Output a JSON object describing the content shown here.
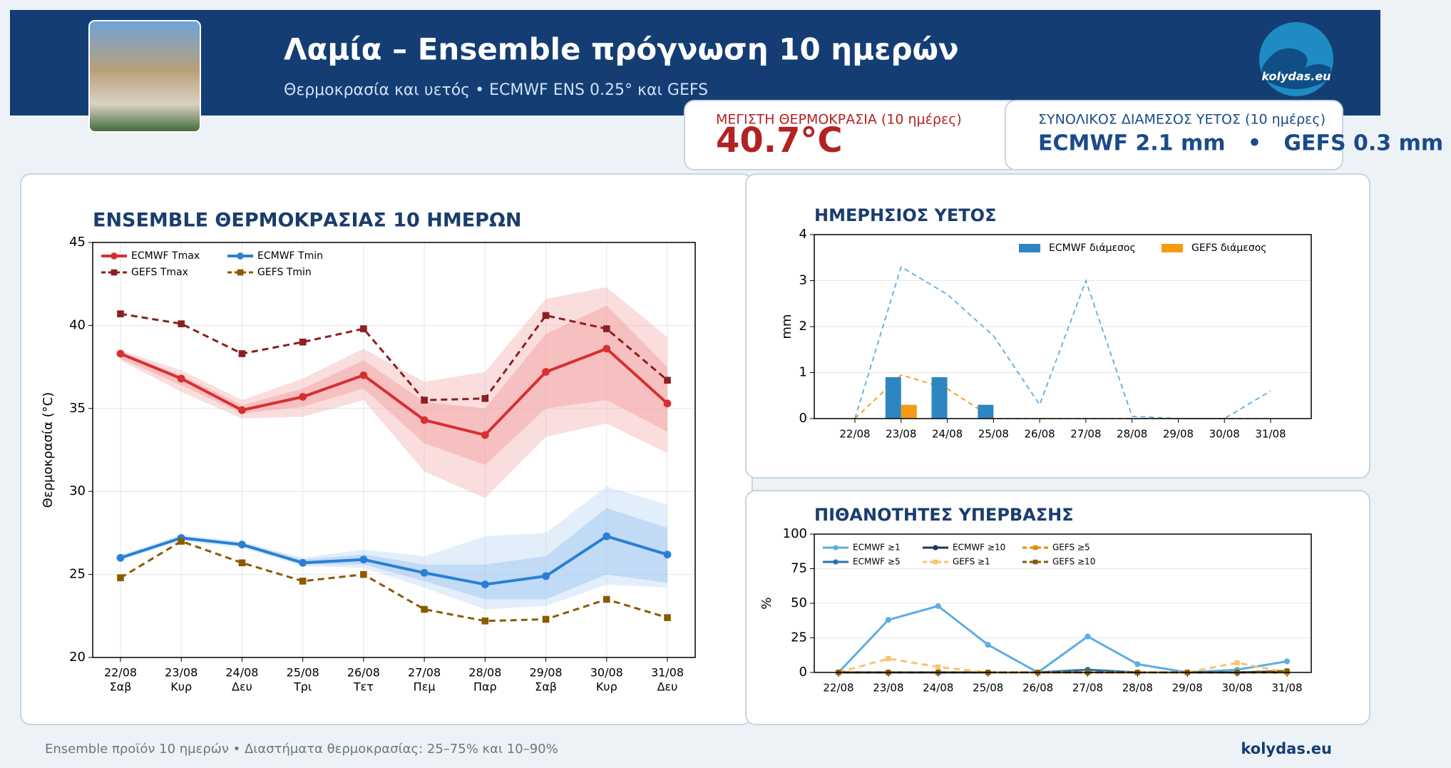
{
  "header": {
    "title": "Λαμία – Ensemble πρόγνωση 10 ημερών",
    "subtitle": "Θερμοκρασία και υετός • ECMWF ENS 0.25° και GEFS",
    "logo": "kolydas.eu"
  },
  "stats": [
    {
      "label": "ΜΕΓΙΣΤΗ ΘΕΡΜΟΚΡΑΣΙΑ (10 ημέρες)",
      "value": "40.7°C"
    },
    {
      "label": "ΣΥΝΟΛΙΚΟΣ ΔΙΑΜΕΣΟΣ ΥΕΤΟΣ (10 ημέρες)",
      "value": "ECMWF 2.1 mm   •   GEFS 0.3 mm"
    }
  ],
  "chart_data": [
    {
      "type": "line",
      "title": "ENSEMBLE ΘΕΡΜΟΚΡΑΣΙΑΣ 10 ΗΜΕΡΩΝ",
      "y_label": "Θερμοκρασία (°C)",
      "categories": [
        "22/08",
        "23/08",
        "24/08",
        "25/08",
        "26/08",
        "27/08",
        "28/08",
        "29/08",
        "30/08",
        "31/08"
      ],
      "weekdays": [
        "Σαβ",
        "Κυρ",
        "Δευ",
        "Τρι",
        "Τετ",
        "Πεμ",
        "Παρ",
        "Σαβ",
        "Κυρ",
        "Δευ"
      ],
      "ylim": [
        20,
        45
      ],
      "yticks": [
        20,
        25,
        30,
        35,
        40,
        45
      ],
      "grid": "both",
      "legend_loc": "upper left",
      "legend_ncol": 2,
      "bands": [
        {
          "color": "#f4b3b3",
          "opacity": 0.45,
          "low": [
            37.9,
            36.0,
            34.4,
            34.5,
            35.5,
            31.2,
            29.6,
            33.3,
            34.1,
            32.3
          ],
          "high": [
            38.5,
            37.3,
            35.5,
            36.8,
            38.6,
            36.6,
            37.2,
            41.6,
            42.3,
            39.3
          ]
        },
        {
          "color": "#f28a8a",
          "opacity": 0.35,
          "low": [
            38.0,
            36.4,
            34.7,
            35.1,
            36.2,
            32.9,
            31.6,
            35.0,
            35.5,
            33.6
          ],
          "high": [
            38.4,
            37.0,
            35.2,
            36.2,
            37.9,
            35.4,
            35.0,
            39.5,
            41.2,
            37.5
          ]
        },
        {
          "color": "#b9d4f4",
          "opacity": 0.4,
          "low": [
            25.9,
            27.0,
            26.6,
            25.5,
            25.4,
            24.2,
            22.9,
            23.1,
            24.4,
            24.2
          ],
          "high": [
            26.2,
            27.4,
            27.0,
            26.0,
            26.5,
            26.1,
            27.3,
            27.5,
            30.3,
            29.2
          ]
        },
        {
          "color": "#8ebcef",
          "opacity": 0.4,
          "low": [
            26.0,
            27.1,
            26.7,
            25.6,
            25.6,
            24.6,
            23.5,
            23.5,
            25.0,
            24.5
          ],
          "high": [
            26.1,
            27.3,
            26.9,
            25.9,
            26.2,
            25.6,
            25.6,
            26.1,
            29.0,
            27.8
          ]
        }
      ],
      "series": [
        {
          "name": "ECMWF Tmax",
          "color": "#d62f34",
          "style": "solid",
          "marker": "circle",
          "width": 4,
          "values": [
            38.3,
            36.8,
            34.9,
            35.7,
            37.0,
            34.3,
            33.4,
            37.2,
            38.6,
            35.3
          ]
        },
        {
          "name": "GEFS Tmax",
          "color": "#8b1f22",
          "style": "dashed",
          "marker": "square",
          "width": 3,
          "values": [
            40.7,
            40.1,
            38.3,
            39.0,
            39.8,
            35.5,
            35.6,
            40.6,
            39.8,
            36.7
          ]
        },
        {
          "name": "ECMWF Tmin",
          "color": "#2a7fd4",
          "style": "solid",
          "marker": "circle",
          "width": 4,
          "values": [
            26.0,
            27.2,
            26.8,
            25.7,
            25.9,
            25.1,
            24.4,
            24.9,
            27.3,
            26.2
          ]
        },
        {
          "name": "GEFS Tmin",
          "color": "#8b5a00",
          "style": "dashed",
          "marker": "square",
          "width": 3,
          "values": [
            24.8,
            27.0,
            25.7,
            24.6,
            25.0,
            22.9,
            22.2,
            22.3,
            23.5,
            22.4
          ]
        }
      ]
    },
    {
      "type": "bar",
      "title": "ΗΜΕΡΗΣΙΟΣ ΥΕΤΟΣ",
      "y_label": "mm",
      "categories": [
        "22/08",
        "23/08",
        "24/08",
        "25/08",
        "26/08",
        "27/08",
        "28/08",
        "29/08",
        "30/08",
        "31/08"
      ],
      "ylim": [
        0,
        4
      ],
      "yticks": [
        0,
        1,
        2,
        3,
        4
      ],
      "grid": "y",
      "legend_loc": "upper right",
      "legend_ncol": 2,
      "series": [
        {
          "name": "ECMWF διάμεσος",
          "color": "#2e86c1",
          "style": "bar",
          "values": [
            0,
            0.9,
            0.9,
            0.3,
            0,
            0,
            0,
            0,
            0,
            0
          ]
        },
        {
          "name": "GEFS διάμεσος",
          "color": "#f39c12",
          "style": "bar",
          "values": [
            0,
            0.3,
            0,
            0,
            0,
            0,
            0,
            0,
            0,
            0
          ]
        }
      ],
      "lines": [
        {
          "color": "#5dade2",
          "values": [
            0,
            3.3,
            2.7,
            1.8,
            0.3,
            3.0,
            0.05,
            0,
            0,
            0.6
          ]
        },
        {
          "color": "#f39c12",
          "values": [
            0,
            0.95,
            0.65,
            0,
            0,
            0,
            0,
            0,
            0,
            0
          ]
        }
      ]
    },
    {
      "type": "line",
      "title": "ΠΙΘΑΝΟΤΗΤΕΣ ΥΠΕΡΒΑΣΗΣ",
      "y_label": "%",
      "categories": [
        "22/08",
        "23/08",
        "24/08",
        "25/08",
        "26/08",
        "27/08",
        "28/08",
        "29/08",
        "30/08",
        "31/08"
      ],
      "ylim": [
        0,
        100
      ],
      "yticks": [
        0,
        25,
        50,
        75,
        100
      ],
      "grid": "y",
      "legend_loc": "upper left",
      "legend_ncol": 3,
      "series": [
        {
          "name": "ECMWF ≥1",
          "color": "#5dade2",
          "style": "solid",
          "marker": "circle",
          "width": 3,
          "values": [
            0,
            38,
            48,
            20,
            0,
            26,
            6,
            0,
            2,
            8
          ]
        },
        {
          "name": "ECMWF ≥5",
          "color": "#2874a6",
          "style": "solid",
          "marker": "circle",
          "width": 3,
          "values": [
            0,
            0,
            0,
            0,
            0,
            2,
            0,
            0,
            0,
            1
          ]
        },
        {
          "name": "ECMWF ≥10",
          "color": "#1b3a5c",
          "style": "solid",
          "marker": "circle",
          "width": 3,
          "values": [
            0,
            0,
            0,
            0,
            0,
            0,
            0,
            0,
            0,
            0
          ]
        },
        {
          "name": "GEFS ≥1",
          "color": "#f8c471",
          "style": "dashed",
          "marker": "square",
          "width": 3,
          "values": [
            0,
            10,
            4,
            0,
            0,
            0,
            0,
            0,
            7,
            0
          ]
        },
        {
          "name": "GEFS ≥5",
          "color": "#e08e0b",
          "style": "dashed",
          "marker": "square",
          "width": 3,
          "values": [
            0,
            0,
            0,
            0,
            0,
            0,
            0,
            0,
            0,
            0
          ]
        },
        {
          "name": "GEFS ≥10",
          "color": "#8b5a00",
          "style": "dashed",
          "marker": "square",
          "width": 3,
          "values": [
            0,
            0,
            0,
            0,
            0,
            0,
            0,
            0,
            0,
            1
          ]
        }
      ]
    }
  ],
  "footer": {
    "note": "Ensemble προϊόν 10 ημερών • Διαστήματα θερμοκρασίας: 25–75% και 10–90%",
    "brand": "kolydas.eu"
  }
}
